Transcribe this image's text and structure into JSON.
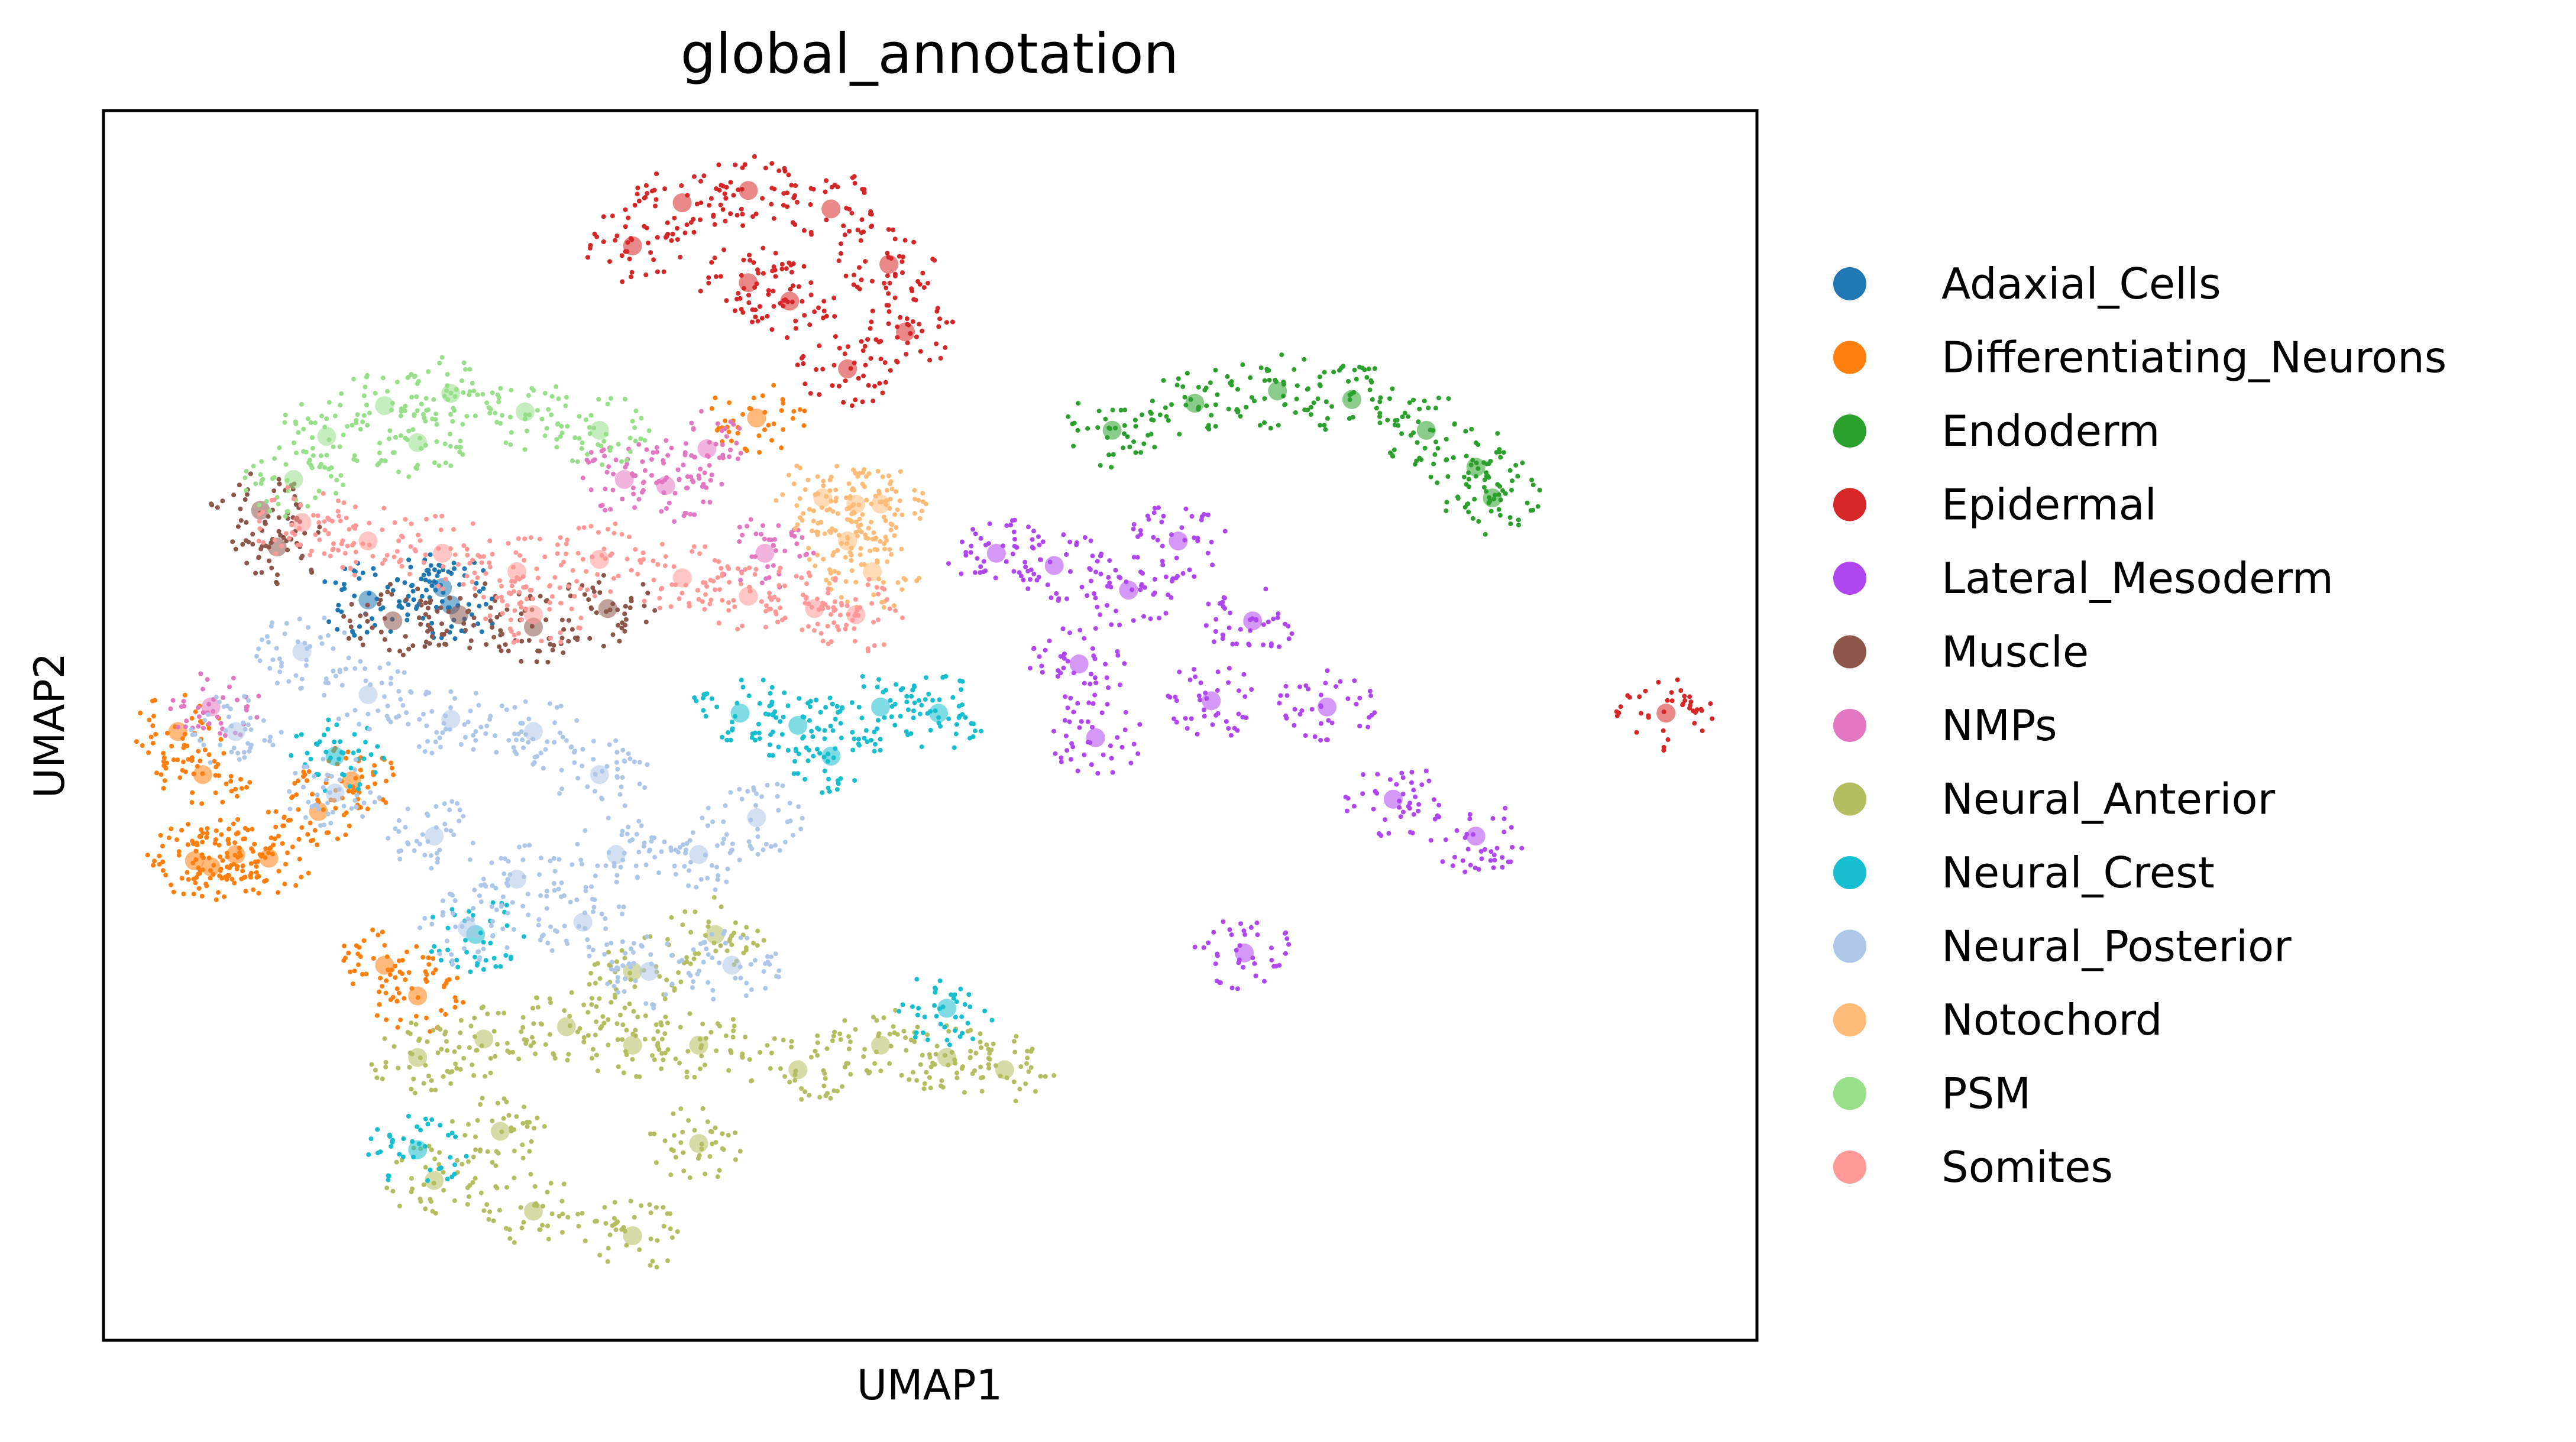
{
  "chart_data": {
    "type": "scatter",
    "title": "global_annotation",
    "xlabel": "UMAP1",
    "ylabel": "UMAP2",
    "xticks": false,
    "yticks": false,
    "grid": false,
    "legend_position": "right-outside",
    "xlim": [
      0,
      10
    ],
    "ylim": [
      0,
      10
    ],
    "series": [
      {
        "name": "Adaxial_Cells",
        "color": "#1f77b4",
        "points": [
          [
            2.05,
            6.12
          ],
          [
            2.1,
            5.98
          ],
          [
            1.6,
            6.02
          ]
        ]
      },
      {
        "name": "Differentiating_Neurons",
        "color": "#ff7f0e",
        "points": [
          [
            0.55,
            3.9
          ],
          [
            0.65,
            3.85
          ],
          [
            0.8,
            3.95
          ],
          [
            1.0,
            3.92
          ],
          [
            1.3,
            4.3
          ],
          [
            1.5,
            4.55
          ],
          [
            0.6,
            4.6
          ],
          [
            0.45,
            4.95
          ],
          [
            1.7,
            3.05
          ],
          [
            1.9,
            2.8
          ],
          [
            3.95,
            7.5
          ]
        ]
      },
      {
        "name": "Endoderm",
        "color": "#2ca02c",
        "points": [
          [
            6.1,
            7.4
          ],
          [
            6.6,
            7.62
          ],
          [
            7.1,
            7.72
          ],
          [
            7.55,
            7.65
          ],
          [
            8.0,
            7.4
          ],
          [
            8.3,
            7.1
          ],
          [
            8.4,
            6.85
          ]
        ]
      },
      {
        "name": "Epidermal",
        "color": "#d62728",
        "points": [
          [
            3.2,
            8.9
          ],
          [
            3.5,
            9.25
          ],
          [
            3.9,
            9.35
          ],
          [
            4.4,
            9.2
          ],
          [
            4.75,
            8.75
          ],
          [
            4.15,
            8.45
          ],
          [
            3.9,
            8.6
          ],
          [
            4.85,
            8.2
          ],
          [
            4.5,
            7.9
          ],
          [
            9.45,
            5.1
          ]
        ]
      },
      {
        "name": "Lateral_Mesoderm",
        "color": "#b046f0",
        "points": [
          [
            5.4,
            6.4
          ],
          [
            5.75,
            6.3
          ],
          [
            6.2,
            6.1
          ],
          [
            6.5,
            6.5
          ],
          [
            6.95,
            5.85
          ],
          [
            6.7,
            5.2
          ],
          [
            7.4,
            5.15
          ],
          [
            7.8,
            4.4
          ],
          [
            8.3,
            4.1
          ],
          [
            6.0,
            4.9
          ],
          [
            6.9,
            3.15
          ],
          [
            5.9,
            5.5
          ]
        ]
      },
      {
        "name": "Muscle",
        "color": "#8c564b",
        "points": [
          [
            0.95,
            6.75
          ],
          [
            1.05,
            6.45
          ],
          [
            1.75,
            5.85
          ],
          [
            2.15,
            5.9
          ],
          [
            2.6,
            5.8
          ],
          [
            3.05,
            5.95
          ]
        ]
      },
      {
        "name": "NMPs",
        "color": "#e377c2",
        "points": [
          [
            3.15,
            7.0
          ],
          [
            3.4,
            6.95
          ],
          [
            3.65,
            7.25
          ],
          [
            4.0,
            6.4
          ],
          [
            0.65,
            5.15
          ]
        ]
      },
      {
        "name": "Neural_Anterior",
        "color": "#b5bd61",
        "points": [
          [
            1.9,
            2.3
          ],
          [
            2.3,
            2.45
          ],
          [
            2.8,
            2.55
          ],
          [
            3.2,
            2.4
          ],
          [
            3.6,
            2.4
          ],
          [
            4.2,
            2.2
          ],
          [
            4.7,
            2.4
          ],
          [
            5.1,
            2.3
          ],
          [
            5.45,
            2.2
          ],
          [
            2.0,
            1.3
          ],
          [
            2.6,
            1.05
          ],
          [
            3.2,
            0.85
          ],
          [
            3.6,
            1.6
          ],
          [
            2.4,
            1.7
          ],
          [
            3.2,
            3.0
          ],
          [
            3.7,
            3.3
          ]
        ]
      },
      {
        "name": "Neural_Crest",
        "color": "#17becf",
        "points": [
          [
            3.85,
            5.1
          ],
          [
            4.2,
            5.0
          ],
          [
            4.4,
            4.75
          ],
          [
            4.7,
            5.15
          ],
          [
            5.05,
            5.1
          ],
          [
            1.4,
            4.75
          ],
          [
            2.25,
            3.3
          ],
          [
            1.9,
            1.55
          ],
          [
            5.1,
            2.7
          ]
        ]
      },
      {
        "name": "Neural_Posterior",
        "color": "#aec7e8",
        "points": [
          [
            1.2,
            5.6
          ],
          [
            1.6,
            5.25
          ],
          [
            2.1,
            5.05
          ],
          [
            2.6,
            4.95
          ],
          [
            3.0,
            4.6
          ],
          [
            0.8,
            4.95
          ],
          [
            1.4,
            4.45
          ],
          [
            2.0,
            4.1
          ],
          [
            2.5,
            3.75
          ],
          [
            3.1,
            3.95
          ],
          [
            3.6,
            3.95
          ],
          [
            2.2,
            3.35
          ],
          [
            2.9,
            3.4
          ],
          [
            3.3,
            3.0
          ],
          [
            3.8,
            3.05
          ],
          [
            3.95,
            4.25
          ]
        ]
      },
      {
        "name": "Notochord",
        "color": "#ffbb78",
        "points": [
          [
            4.35,
            6.85
          ],
          [
            4.55,
            6.8
          ],
          [
            4.7,
            6.8
          ],
          [
            4.5,
            6.5
          ],
          [
            4.65,
            6.25
          ]
        ]
      },
      {
        "name": "PSM",
        "color": "#98df8a",
        "points": [
          [
            1.15,
            7.0
          ],
          [
            1.35,
            7.35
          ],
          [
            1.7,
            7.6
          ],
          [
            2.1,
            7.7
          ],
          [
            2.55,
            7.55
          ],
          [
            3.0,
            7.4
          ],
          [
            1.9,
            7.3
          ]
        ]
      },
      {
        "name": "Somites",
        "color": "#ff9896",
        "points": [
          [
            1.2,
            6.65
          ],
          [
            1.6,
            6.5
          ],
          [
            2.05,
            6.4
          ],
          [
            2.5,
            6.25
          ],
          [
            3.0,
            6.35
          ],
          [
            3.5,
            6.2
          ],
          [
            3.9,
            6.05
          ],
          [
            4.3,
            5.95
          ],
          [
            4.55,
            5.9
          ],
          [
            2.6,
            5.9
          ]
        ]
      }
    ]
  }
}
